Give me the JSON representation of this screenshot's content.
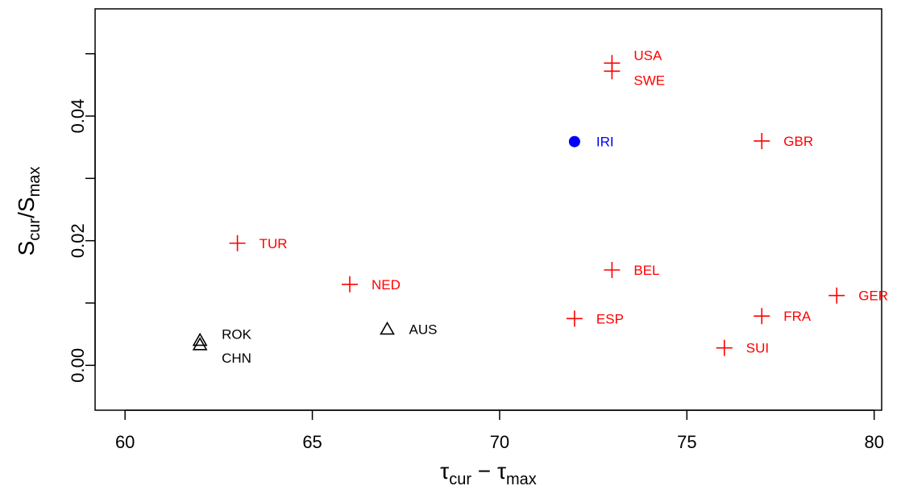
{
  "chart_data": {
    "type": "scatter",
    "title": "",
    "xlabel": {
      "main": "τ",
      "sub1": "cur",
      "mid": " − τ",
      "sub2": "max"
    },
    "ylabel": {
      "main": "S",
      "sub1": "cur",
      "mid": "/S",
      "sub2": "max"
    },
    "xlim": [
      59.2,
      80.2
    ],
    "ylim": [
      -0.0072,
      0.0572
    ],
    "xticks": [
      60,
      65,
      70,
      75,
      80
    ],
    "yticks": [
      0.0,
      0.02,
      0.04
    ],
    "xtick_labels": [
      "60",
      "65",
      "70",
      "75",
      "80"
    ],
    "ytick_labels": [
      "0.00",
      "0.02",
      "0.04"
    ],
    "grid": false,
    "series": [
      {
        "marker": "plus",
        "color": "#ff0000",
        "points": [
          {
            "label": "USA",
            "x": 73,
            "y": 0.0485
          },
          {
            "label": "SWE",
            "x": 73,
            "y": 0.0472
          },
          {
            "label": "GBR",
            "x": 77,
            "y": 0.036
          },
          {
            "label": "TUR",
            "x": 63,
            "y": 0.0196
          },
          {
            "label": "NED",
            "x": 66,
            "y": 0.013
          },
          {
            "label": "BEL",
            "x": 73,
            "y": 0.0153
          },
          {
            "label": "GER",
            "x": 79,
            "y": 0.0112
          },
          {
            "label": "FRA",
            "x": 77,
            "y": 0.0079
          },
          {
            "label": "ESP",
            "x": 72,
            "y": 0.0075
          },
          {
            "label": "SUI",
            "x": 76,
            "y": 0.0028
          }
        ]
      },
      {
        "marker": "circle",
        "color": "#0000ff",
        "points": [
          {
            "label": "IRI",
            "x": 72,
            "y": 0.0359
          }
        ]
      },
      {
        "marker": "triangle",
        "color": "#000000",
        "points": [
          {
            "label": "ROK",
            "x": 62,
            "y": 0.004
          },
          {
            "label": "CHN",
            "x": 62,
            "y": 0.0033
          },
          {
            "label": "AUS",
            "x": 67,
            "y": 0.0058
          }
        ]
      }
    ]
  }
}
